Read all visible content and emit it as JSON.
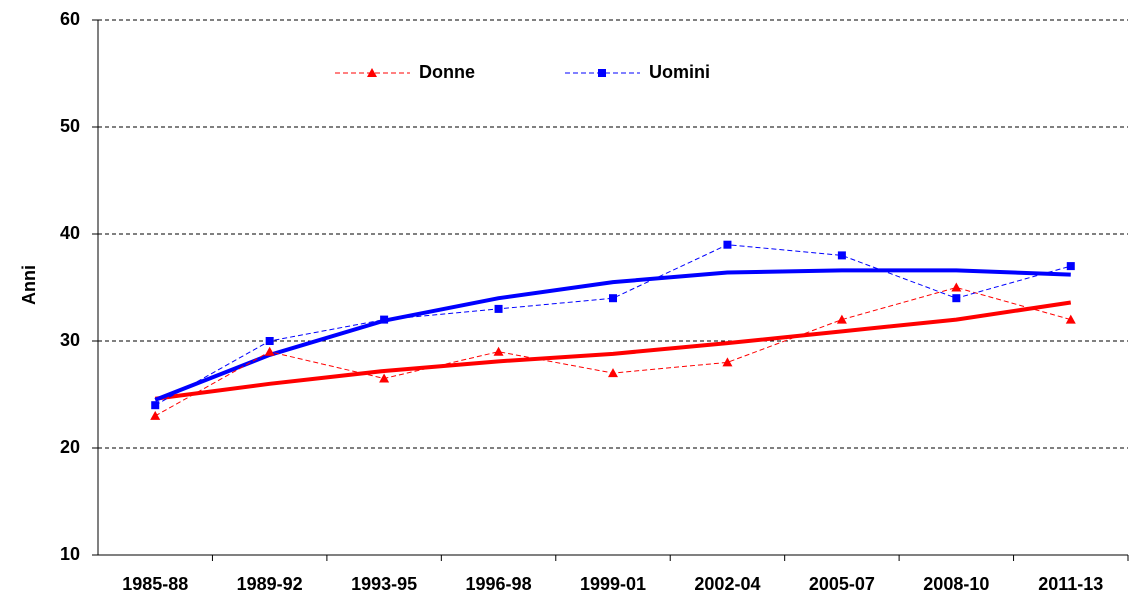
{
  "chart_data": {
    "type": "line",
    "y_label": "Anni",
    "categories": [
      "1985-88",
      "1989-92",
      "1993-95",
      "1996-98",
      "1999-01",
      "2002-04",
      "2005-07",
      "2008-10",
      "2011-13"
    ],
    "series": [
      {
        "name": "Donne",
        "color": "#ff0000",
        "marker": "triangle",
        "values": [
          23,
          29,
          26.5,
          29,
          27,
          28,
          32,
          35,
          32
        ]
      },
      {
        "name": "Uomini",
        "color": "#0000ff",
        "marker": "square",
        "values": [
          24,
          30,
          32,
          33,
          34,
          39,
          38,
          34,
          37
        ]
      }
    ],
    "trendlines": [
      {
        "color": "#ff0000",
        "values": [
          24.6,
          26.0,
          27.2,
          28.1,
          28.8,
          29.8,
          30.9,
          32.0,
          33.6
        ]
      },
      {
        "color": "#0000ff",
        "values": [
          24.5,
          28.7,
          31.9,
          34.0,
          35.5,
          36.4,
          36.6,
          36.6,
          36.2
        ]
      }
    ],
    "ylim": [
      10,
      60
    ],
    "yticks": [
      10,
      20,
      30,
      40,
      50,
      60
    ],
    "grid": true,
    "legend": "top"
  }
}
